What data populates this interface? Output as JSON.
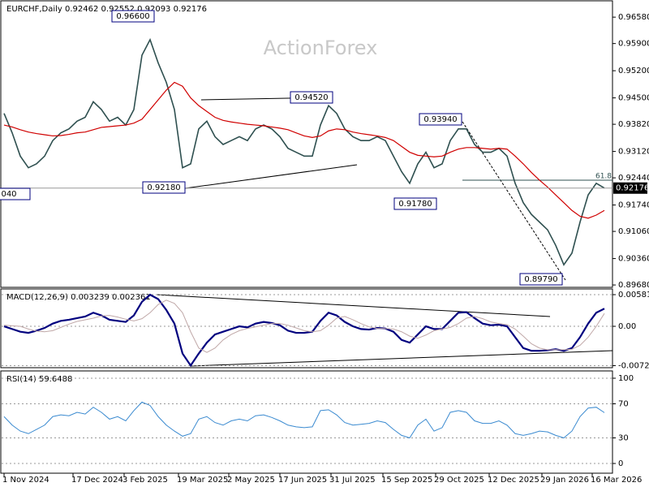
{
  "chart_data": [
    {
      "type": "line",
      "title": "EURCHF,Daily  0.92462 0.92552 0.92093 0.92176",
      "watermark": "ActionForex",
      "xlim": [
        0,
        74
      ],
      "ylim": [
        0.8964,
        0.9698
      ],
      "yticks": [
        {
          "value": 0.9658,
          "label": "0.96580"
        },
        {
          "value": 0.959,
          "label": "0.95900"
        },
        {
          "value": 0.952,
          "label": "0.95200"
        },
        {
          "value": 0.945,
          "label": "0.94500"
        },
        {
          "value": 0.9382,
          "label": "0.93820"
        },
        {
          "value": 0.9312,
          "label": "0.93120"
        },
        {
          "value": 0.9244,
          "label": "0.92440"
        },
        {
          "value": 0.9174,
          "label": "0.91740"
        },
        {
          "value": 0.9106,
          "label": "0.91060"
        },
        {
          "value": 0.9036,
          "label": "0.90360"
        },
        {
          "value": 0.8968,
          "label": "0.89680"
        }
      ],
      "last_price": {
        "value": 0.92176,
        "label": "0.92176"
      },
      "annotations": [
        "0.96600",
        "0.94520",
        "0.93940",
        "0.92180",
        "0.91780",
        "0.89790",
        "040",
        "61.8"
      ],
      "series": [
        {
          "color": "#2f5050",
          "values": [
            0.941,
            0.936,
            0.93,
            0.927,
            0.928,
            0.93,
            0.934,
            0.936,
            0.937,
            0.939,
            0.94,
            0.944,
            0.942,
            0.939,
            0.94,
            0.938,
            0.942,
            0.956,
            0.96,
            0.954,
            0.949,
            0.942,
            0.927,
            0.928,
            0.937,
            0.939,
            0.935,
            0.933,
            0.934,
            0.935,
            0.934,
            0.937,
            0.938,
            0.937,
            0.935,
            0.932,
            0.931,
            0.93,
            0.93,
            0.938,
            0.943,
            0.941,
            0.937,
            0.935,
            0.934,
            0.934,
            0.935,
            0.934,
            0.93,
            0.926,
            0.923,
            0.928,
            0.931,
            0.927,
            0.928,
            0.934,
            0.937,
            0.937,
            0.933,
            0.931,
            0.931,
            0.932,
            0.93,
            0.923,
            0.918,
            0.915,
            0.913,
            0.911,
            0.907,
            0.902,
            0.905,
            0.913,
            0.92,
            0.923,
            0.92176
          ]
        },
        {
          "color": "#d00000",
          "values": [
            0.938,
            0.9375,
            0.9368,
            0.9362,
            0.9358,
            0.9355,
            0.9352,
            0.9353,
            0.9356,
            0.936,
            0.9362,
            0.9368,
            0.9374,
            0.9376,
            0.9378,
            0.938,
            0.9385,
            0.9395,
            0.942,
            0.9445,
            0.947,
            0.949,
            0.948,
            0.945,
            0.943,
            0.9415,
            0.94,
            0.9392,
            0.9388,
            0.9385,
            0.9382,
            0.938,
            0.9378,
            0.9375,
            0.9372,
            0.9368,
            0.936,
            0.9352,
            0.9348,
            0.9352,
            0.9365,
            0.937,
            0.9368,
            0.9362,
            0.9358,
            0.9355,
            0.9352,
            0.9348,
            0.934,
            0.9325,
            0.931,
            0.9302,
            0.93,
            0.9298,
            0.93,
            0.931,
            0.9318,
            0.9322,
            0.9322,
            0.932,
            0.9318,
            0.932,
            0.9318,
            0.93,
            0.928,
            0.9258,
            0.9238,
            0.922,
            0.92,
            0.918,
            0.916,
            0.9145,
            0.914,
            0.9148,
            0.916
          ]
        }
      ]
    },
    {
      "type": "line",
      "title": "MACD(12,26,9) 0.003239 0.002361",
      "xlim": [
        0,
        74
      ],
      "ylim": [
        -0.00745,
        0.00686
      ],
      "yticks": [
        0.005814,
        {
          "value": 0,
          "label": "0.00"
        },
        -0.007222
      ],
      "series": [
        {
          "color": "#00007f",
          "values": [
            0,
            -0.0005,
            -0.001,
            -0.0012,
            -0.0008,
            -0.0003,
            0.0005,
            0.001,
            0.0012,
            0.0015,
            0.0018,
            0.0025,
            0.002,
            0.0012,
            0.001,
            0.0008,
            0.002,
            0.0045,
            0.0058,
            0.005,
            0.003,
            0.0005,
            -0.005,
            -0.0072,
            -0.005,
            -0.003,
            -0.0015,
            -0.001,
            -0.0005,
            0,
            -0.0002,
            0.0005,
            0.0008,
            0.0006,
            0.0002,
            -0.0008,
            -0.0012,
            -0.0012,
            -0.001,
            0.001,
            0.0025,
            0.002,
            0.0008,
            0,
            -0.0005,
            -0.0006,
            -0.0003,
            -0.0004,
            -0.001,
            -0.0025,
            -0.003,
            -0.0015,
            0,
            -0.0005,
            -0.0005,
            0.001,
            0.0025,
            0.0026,
            0.0015,
            0.0005,
            0.0002,
            0.0003,
            0,
            -0.002,
            -0.004,
            -0.0045,
            -0.0045,
            -0.0044,
            -0.0042,
            -0.0045,
            -0.004,
            -0.002,
            0.0005,
            0.0025,
            0.003239
          ]
        },
        {
          "color": "#c0a8a8",
          "values": [
            0.0002,
            0.0001,
            0,
            -0.0005,
            -0.0009,
            -0.001,
            -0.0008,
            -0.0002,
            0.0004,
            0.0009,
            0.0012,
            0.0015,
            0.0019,
            0.002,
            0.0017,
            0.0013,
            0.001,
            0.0014,
            0.0025,
            0.004,
            0.0048,
            0.0042,
            0.0025,
            -0.001,
            -0.004,
            -0.0048,
            -0.004,
            -0.0025,
            -0.0015,
            -0.0008,
            -0.0004,
            -0.0001,
            0.0002,
            0.0005,
            0.0005,
            0.0002,
            -0.0003,
            -0.0008,
            -0.001,
            -0.0008,
            0.0002,
            0.0015,
            0.0018,
            0.0012,
            0.0005,
            -0.0001,
            -0.0004,
            -0.0004,
            -0.0005,
            -0.001,
            -0.0018,
            -0.0022,
            -0.0016,
            -0.0008,
            -0.0005,
            -0.0002,
            0.0005,
            0.0015,
            0.0018,
            0.0014,
            0.0008,
            0.0005,
            0.0003,
            -0.0005,
            -0.0018,
            -0.0032,
            -0.004,
            -0.0043,
            -0.0043,
            -0.0043,
            -0.0042,
            -0.0035,
            -0.002,
            0,
            0.002361
          ]
        }
      ]
    },
    {
      "type": "line",
      "title": "RSI(14) 59.6488",
      "xlim": [
        0,
        74
      ],
      "ylim": [
        -11.4,
        107.6
      ],
      "yticks": [
        100,
        70,
        30,
        0
      ],
      "xticks": [
        {
          "value": 0,
          "label": "1 Nov 2024"
        },
        {
          "value": 8.5,
          "label": "17 Dec 2024"
        },
        {
          "value": 14.8,
          "label": "3 Feb 2025"
        },
        {
          "value": 21.5,
          "label": "19 Mar 2025"
        },
        {
          "value": 27.7,
          "label": "2 May 2025"
        },
        {
          "value": 34,
          "label": "17 Jun 2025"
        },
        {
          "value": 40.3,
          "label": "31 Jul 2025"
        },
        {
          "value": 46.7,
          "label": "15 Sep 2025"
        },
        {
          "value": 53.2,
          "label": "29 Oct 2025"
        },
        {
          "value": 59.8,
          "label": "12 Dec 2025"
        },
        {
          "value": 66.3,
          "label": "29 Jan 2026"
        },
        {
          "value": 72.5,
          "label": "16 Mar 2026"
        }
      ],
      "series": [
        {
          "color": "#3a8ad0",
          "values": [
            55,
            45,
            38,
            35,
            40,
            45,
            55,
            57,
            56,
            60,
            58,
            66,
            60,
            52,
            55,
            50,
            62,
            72,
            68,
            55,
            45,
            38,
            32,
            35,
            52,
            55,
            48,
            45,
            50,
            52,
            50,
            56,
            57,
            54,
            50,
            45,
            43,
            42,
            43,
            62,
            63,
            57,
            48,
            45,
            46,
            47,
            50,
            48,
            40,
            33,
            30,
            45,
            52,
            38,
            42,
            60,
            62,
            60,
            50,
            47,
            47,
            50,
            45,
            35,
            33,
            35,
            38,
            37,
            33,
            30,
            38,
            55,
            65,
            66,
            59.6488
          ]
        }
      ]
    }
  ]
}
